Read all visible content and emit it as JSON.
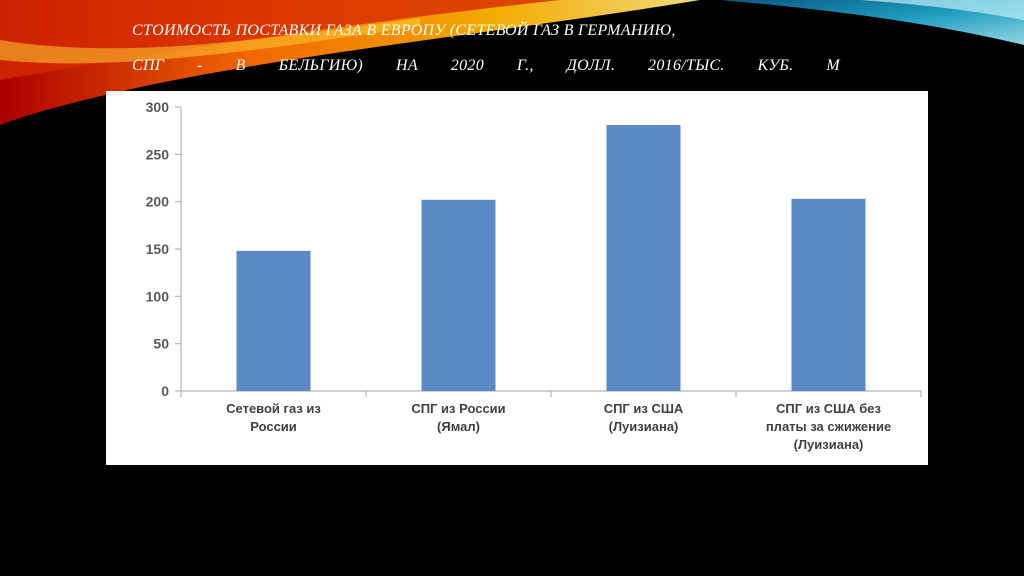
{
  "slide": {
    "title_line1": "СТОИМОСТЬ ПОСТАВКИ ГАЗА В ЕВРОПУ (СЕТЕВОЙ ГАЗ В ГЕРМАНИЮ,",
    "title_line2": "СПГ - В БЕЛЬГИЮ) НА 2020 Г., ДОЛЛ. 2016/ТЫС. КУБ. М"
  },
  "colors": {
    "bar": "#5b8bc6",
    "axis": "#a6a6a6",
    "background": "#000000"
  },
  "chart_data": {
    "type": "bar",
    "title": "",
    "xlabel": "",
    "ylabel": "",
    "ylim": [
      0,
      300
    ],
    "yticks": [
      0,
      50,
      100,
      150,
      200,
      250,
      300
    ],
    "grid": false,
    "legend": "none",
    "categories": [
      [
        "Сетевой газ из",
        "России"
      ],
      [
        "СПГ из России",
        "(Ямал)"
      ],
      [
        "СПГ из США",
        "(Луизиана)"
      ],
      [
        "СПГ из США без",
        "платы за сжижение",
        "(Луизиана)"
      ]
    ],
    "values": [
      148,
      202,
      281,
      203
    ]
  }
}
